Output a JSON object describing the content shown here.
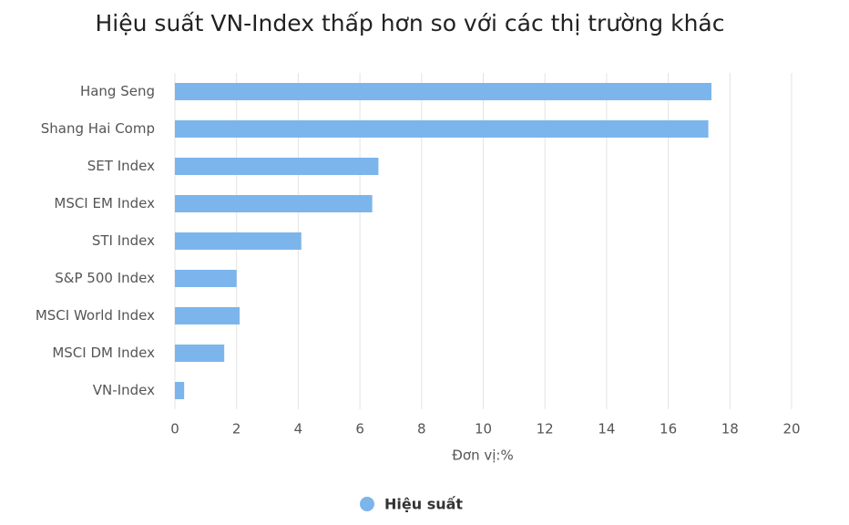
{
  "chart_data": {
    "type": "bar",
    "title": "Hiệu suất VN-Index thấp hơn so với các thị trường khác",
    "x_label": "Đơn vị:%",
    "categories": [
      "Hang Seng",
      "Shang Hai Comp",
      "SET Index",
      "MSCI EM Index",
      "STI Index",
      "S&P 500 Index",
      "MSCI World Index",
      "MSCI DM Index",
      "VN-Index"
    ],
    "series": [
      {
        "name": "Hiệu suất",
        "color": "#7cb5ec",
        "values": [
          17.4,
          17.3,
          6.6,
          6.4,
          4.1,
          2.0,
          2.1,
          1.6,
          0.3
        ]
      }
    ],
    "xlim": [
      0,
      20
    ],
    "xticks": [
      0,
      2,
      4,
      6,
      8,
      10,
      12,
      14,
      16,
      18,
      20
    ],
    "grid": true
  }
}
